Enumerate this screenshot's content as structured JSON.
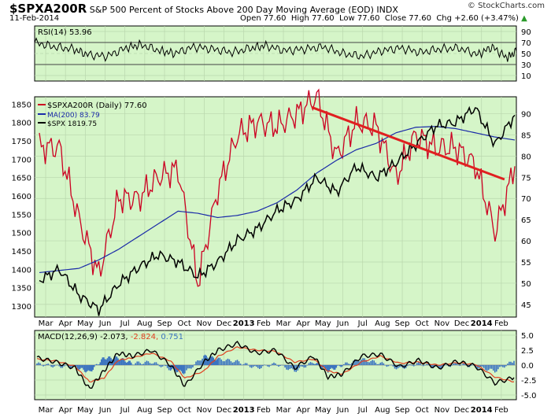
{
  "header": {
    "symbol": "$SPXA200R",
    "description": "S&P 500 Percent of Stocks Above 200 Day Moving Average (EOD)",
    "exchange": "INDX",
    "date": "11-Feb-2014",
    "open": "Open 77.60",
    "high": "High 77.60",
    "low": "Low 77.60",
    "close": "Close 77.60",
    "change": "Chg +2.60 (+3.47%)",
    "change_arrow": "▲",
    "brand": "© StockCharts.com"
  },
  "colors": {
    "panel_bg": "#d5f5c8",
    "spxa": "#cc0022",
    "ma": "#1a2aa8",
    "spx": "#000000",
    "trend": "#e02020",
    "macd_hist": "#3b74c0",
    "signal": "#e04020"
  },
  "chart_data": [
    {
      "type": "line",
      "panel": "RSI",
      "legend": "RSI(14) 53.96",
      "ylim": [
        0,
        100
      ],
      "ticks": [
        "90",
        "70",
        "50",
        "30",
        "10"
      ],
      "series": [
        {
          "name": "RSI(14)",
          "x": [
            0,
            0.04,
            0.08,
            0.11,
            0.15,
            0.19,
            0.22,
            0.26,
            0.29,
            0.33,
            0.37,
            0.41,
            0.45,
            0.48,
            0.52,
            0.56,
            0.6,
            0.64,
            0.68,
            0.72,
            0.76,
            0.8,
            0.84,
            0.88,
            0.92,
            0.95,
            0.98,
            1.0
          ],
          "values": [
            70,
            62,
            58,
            48,
            45,
            60,
            66,
            55,
            50,
            62,
            58,
            52,
            60,
            64,
            55,
            58,
            62,
            50,
            45,
            55,
            60,
            52,
            58,
            60,
            48,
            62,
            42,
            54
          ]
        }
      ]
    },
    {
      "type": "line",
      "panel": "price",
      "series": [
        {
          "name": "$SPXA200R (Daily) 77.60",
          "color_key": "spxa",
          "dates": [
            "Mar 2012",
            "Apr 2012",
            "May 2012",
            "Jun 2012",
            "Jul 2012",
            "Aug 2012",
            "Sep 2012",
            "Oct 2012",
            "Nov 2012",
            "Dec 2012",
            "Jan 2013",
            "Feb 2013",
            "Mar 2013",
            "Apr 2013",
            "May 2013",
            "Jun 2013",
            "Jul 2013",
            "Aug 2013",
            "Sep 2013",
            "Oct 2013",
            "Nov 2013",
            "Dec 2013",
            "Jan 2014",
            "Feb 2014",
            "Feb 2014 end"
          ],
          "values": [
            82,
            82,
            65,
            52,
            70,
            70,
            75,
            77,
            50,
            72,
            85,
            88,
            87,
            90,
            94,
            80,
            88,
            87,
            75,
            85,
            82,
            82,
            78,
            62,
            77.6
          ]
        },
        {
          "name": "MA(200) 83.79",
          "color_key": "ma",
          "dates": [
            "Mar 2012",
            "Apr 2012",
            "May 2012",
            "Jun 2012",
            "Jul 2012",
            "Aug 2012",
            "Sep 2012",
            "Oct 2012",
            "Nov 2012",
            "Dec 2012",
            "Jan 2013",
            "Feb 2013",
            "Mar 2013",
            "Apr 2013",
            "May 2013",
            "Jun 2013",
            "Jul 2013",
            "Aug 2013",
            "Sep 2013",
            "Oct 2013",
            "Nov 2013",
            "Dec 2013",
            "Jan 2014",
            "Feb 2014",
            "Feb 2014 end"
          ],
          "values": [
            52.5,
            53,
            53.5,
            55.5,
            58,
            61,
            64,
            67,
            66.5,
            65.5,
            66,
            67,
            69,
            72,
            76,
            79,
            81.5,
            83,
            85.5,
            86.8,
            87,
            86.5,
            85.5,
            84.5,
            83.8
          ]
        },
        {
          "name": "$SPX 1819.75",
          "color_key": "spx",
          "dates": [
            "Mar 2012",
            "Apr 2012",
            "May 2012",
            "Jun 2012",
            "Jul 2012",
            "Aug 2012",
            "Sep 2012",
            "Oct 2012",
            "Nov 2012",
            "Dec 2012",
            "Jan 2013",
            "Feb 2013",
            "Mar 2013",
            "Apr 2013",
            "May 2013",
            "Jun 2013",
            "Jul 2013",
            "Aug 2013",
            "Sep 2013",
            "Oct 2013",
            "Nov 2013",
            "Dec 2013",
            "Jan 2014",
            "Feb 2014",
            "Feb 2014 end"
          ],
          "values": [
            1370,
            1400,
            1330,
            1290,
            1360,
            1405,
            1440,
            1420,
            1380,
            1420,
            1480,
            1510,
            1560,
            1590,
            1650,
            1610,
            1680,
            1650,
            1690,
            1740,
            1790,
            1800,
            1840,
            1740,
            1820
          ]
        },
        {
          "name": "trendline",
          "color_key": "trend",
          "dates": [
            "May 2013",
            "Feb 2014 end"
          ],
          "values": [
            91.5,
            74.5
          ]
        }
      ],
      "left_axis_ticks": [
        "1850",
        "1800",
        "1750",
        "1700",
        "1650",
        "1600",
        "1550",
        "1500",
        "1450",
        "1400",
        "1350",
        "1300"
      ],
      "right_axis_ticks": [
        "90",
        "85",
        "80",
        "75",
        "70",
        "65",
        "60",
        "55",
        "50",
        "45"
      ]
    },
    {
      "type": "line",
      "panel": "MACD",
      "legend_prefix": "MACD(12,26,9)",
      "legend_values": [
        "-2.073",
        "-2.824",
        "0.751"
      ],
      "ticks": [
        "5.0",
        "2.5",
        "0.0",
        "-2.5",
        "-5.0"
      ],
      "series": [
        {
          "name": "MACD",
          "x": [
            0,
            0.04,
            0.08,
            0.11,
            0.14,
            0.17,
            0.2,
            0.24,
            0.28,
            0.31,
            0.35,
            0.38,
            0.42,
            0.46,
            0.5,
            0.54,
            0.58,
            0.61,
            0.64,
            0.68,
            0.72,
            0.76,
            0.8,
            0.84,
            0.88,
            0.92,
            0.96,
            1.0
          ],
          "values": [
            1.2,
            0.5,
            -0.5,
            -4,
            -1,
            2,
            1.5,
            2.5,
            0,
            -3.5,
            0.5,
            2.5,
            3.6,
            2,
            2.5,
            -0.5,
            1.5,
            -2,
            -1.5,
            1.5,
            1.8,
            -0.3,
            0.8,
            -0.5,
            0.6,
            -0.2,
            -3,
            -2.1
          ]
        },
        {
          "name": "signal",
          "x": [
            0,
            0.04,
            0.08,
            0.11,
            0.14,
            0.17,
            0.2,
            0.24,
            0.28,
            0.31,
            0.35,
            0.38,
            0.42,
            0.46,
            0.5,
            0.54,
            0.58,
            0.61,
            0.64,
            0.68,
            0.72,
            0.76,
            0.8,
            0.84,
            0.88,
            0.92,
            0.96,
            1.0
          ],
          "values": [
            1.0,
            0.7,
            -0.2,
            -2.8,
            -2.2,
            0.8,
            1.2,
            2.0,
            0.7,
            -2.2,
            -1,
            1.5,
            3,
            2.5,
            2.3,
            0.5,
            1,
            -1,
            -1.5,
            0.5,
            1.5,
            0.3,
            0.5,
            0,
            0.4,
            0.1,
            -2,
            -2.8
          ]
        }
      ]
    }
  ],
  "x_axis": {
    "months": [
      "Mar",
      "Apr",
      "May",
      "Jun",
      "Jul",
      "Aug",
      "Sep",
      "Oct",
      "Nov",
      "Dec",
      "2013",
      "Feb",
      "Mar",
      "Apr",
      "May",
      "Jun",
      "Jul",
      "Aug",
      "Sep",
      "Oct",
      "Nov",
      "Dec",
      "2014",
      "Feb"
    ],
    "bold": [
      "2013",
      "2014"
    ]
  }
}
